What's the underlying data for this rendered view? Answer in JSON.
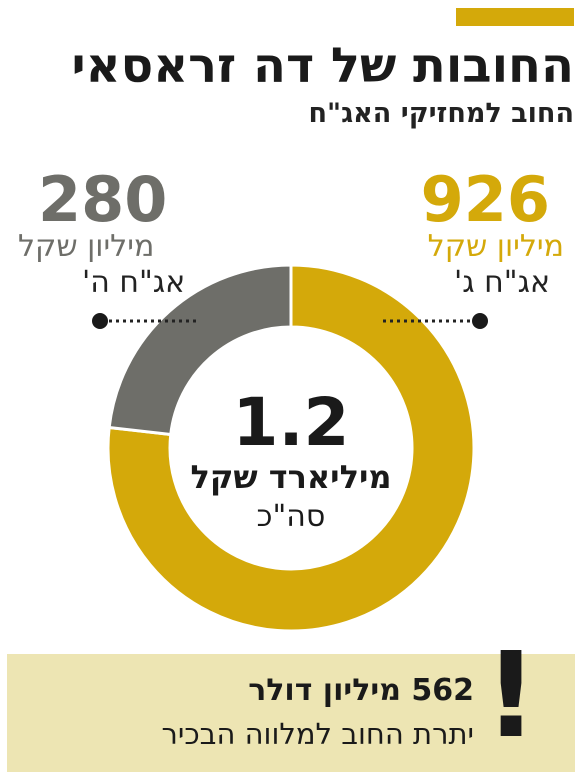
{
  "header": {
    "title": "החובות של דה זראסאי",
    "subtitle": "החוב למחזיקי האג\"ח"
  },
  "colors": {
    "gold": "#d4a90a",
    "gray": "#6e6e69",
    "box": "#ede5b3"
  },
  "chart_data": {
    "type": "pie",
    "variant": "donut",
    "series": [
      {
        "value": 926,
        "value_label": "926",
        "unit": "מיליון שקל",
        "label": "אג\"ח ג'",
        "color": "#d4a90a"
      },
      {
        "value": 280,
        "value_label": "280",
        "unit": "מיליון שקל",
        "label": "אג\"ח ה'",
        "color": "#6e6e69"
      }
    ],
    "total": {
      "value": "1.2",
      "unit": "מיליארד שקל",
      "label": "סה\"כ"
    }
  },
  "note": {
    "line1": "562 מיליון דולר",
    "line2": "יתרת החוב למלווה הבכיר",
    "mark": "!"
  }
}
